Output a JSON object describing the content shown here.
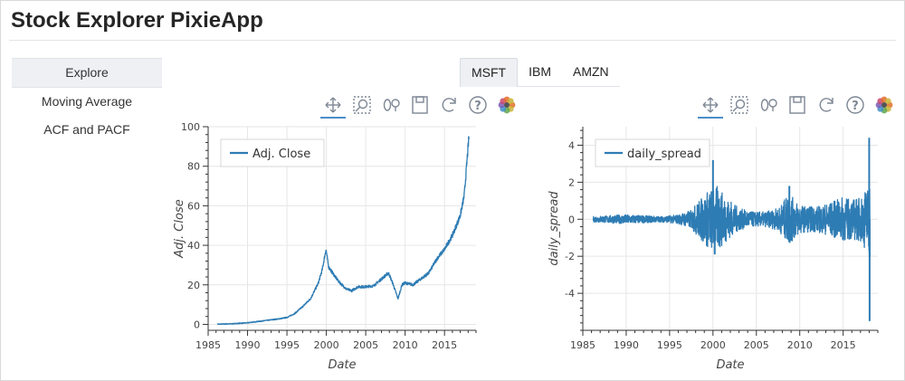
{
  "app": {
    "title": "Stock Explorer PixieApp"
  },
  "sidebar": {
    "items": [
      {
        "label": "Explore",
        "active": true
      },
      {
        "label": "Moving Average",
        "active": false
      },
      {
        "label": "ACF and PACF",
        "active": false
      }
    ]
  },
  "tabs": [
    {
      "label": "MSFT",
      "active": true
    },
    {
      "label": "IBM",
      "active": false
    },
    {
      "label": "AMZN",
      "active": false
    }
  ],
  "toolbar": {
    "tools": [
      "pan-icon",
      "box-zoom-icon",
      "wheel-zoom-icon",
      "save-icon",
      "reset-icon",
      "help-icon",
      "bokeh-logo-icon"
    ]
  },
  "colors": {
    "series": "#2e7cb4",
    "grid": "#e6e6e6",
    "tab_active_bg": "#eef0f4"
  },
  "chart_data": [
    {
      "type": "line",
      "title": "",
      "xlabel": "Date",
      "ylabel": "Adj. Close",
      "legend": "Adj. Close",
      "legend_position": "top-left",
      "xlim": [
        1985,
        2019
      ],
      "ylim": [
        -3,
        100
      ],
      "xticks": [
        1985,
        1990,
        1995,
        2000,
        2005,
        2010,
        2015
      ],
      "yticks": [
        0,
        20,
        40,
        60,
        80,
        100
      ],
      "grid": true,
      "x": [
        1986.2,
        1988,
        1990,
        1992,
        1994,
        1995,
        1996,
        1997,
        1998,
        1999,
        1999.5,
        1999.95,
        2000.3,
        2000.8,
        2001.5,
        2002.5,
        2003.2,
        2004,
        2005,
        2006,
        2007,
        2007.9,
        2008.5,
        2009.1,
        2009.6,
        2010,
        2011,
        2012,
        2013,
        2014,
        2015,
        2016,
        2017,
        2017.5,
        2018.1
      ],
      "values": [
        0.1,
        0.3,
        0.8,
        1.8,
        2.8,
        3.5,
        5.5,
        9,
        13,
        21,
        28,
        38,
        29,
        26,
        22,
        18,
        17,
        19,
        19,
        19.5,
        23,
        26,
        20,
        13,
        20,
        21,
        20,
        23,
        26,
        33,
        38,
        45,
        55,
        65,
        95
      ],
      "noise": 1.2
    },
    {
      "type": "line",
      "title": "",
      "xlabel": "Date",
      "ylabel": "daily_spread",
      "legend": "daily_spread",
      "legend_position": "top-left",
      "xlim": [
        1985,
        2019
      ],
      "ylim": [
        -6,
        5
      ],
      "xticks": [
        1985,
        1990,
        1995,
        2000,
        2005,
        2010,
        2015
      ],
      "yticks": [
        -4,
        -2,
        0,
        2,
        4
      ],
      "grid": true,
      "amplitude_x": [
        1986.2,
        1988,
        1990,
        1992,
        1994,
        1996,
        1997.5,
        1998.5,
        1999.5,
        2000.5,
        2001.5,
        2003,
        2004.5,
        2006,
        2007.5,
        2008.8,
        2009.5,
        2010.5,
        2012,
        2013.5,
        2015,
        2016,
        2017,
        2017.8,
        2018.1
      ],
      "amplitude": [
        0.15,
        0.2,
        0.25,
        0.2,
        0.15,
        0.25,
        0.5,
        1.1,
        1.6,
        1.8,
        1.2,
        0.6,
        0.4,
        0.4,
        0.6,
        1.4,
        1.0,
        0.7,
        0.7,
        0.9,
        1.2,
        1.1,
        1.2,
        1.8,
        2.4
      ],
      "peaks": [
        {
          "x": 2000.0,
          "y": 3.2
        },
        {
          "x": 2000.2,
          "y": -1.9
        },
        {
          "x": 2008.8,
          "y": 1.8
        },
        {
          "x": 2018.0,
          "y": 4.4
        },
        {
          "x": 2018.05,
          "y": -5.5
        }
      ]
    }
  ]
}
